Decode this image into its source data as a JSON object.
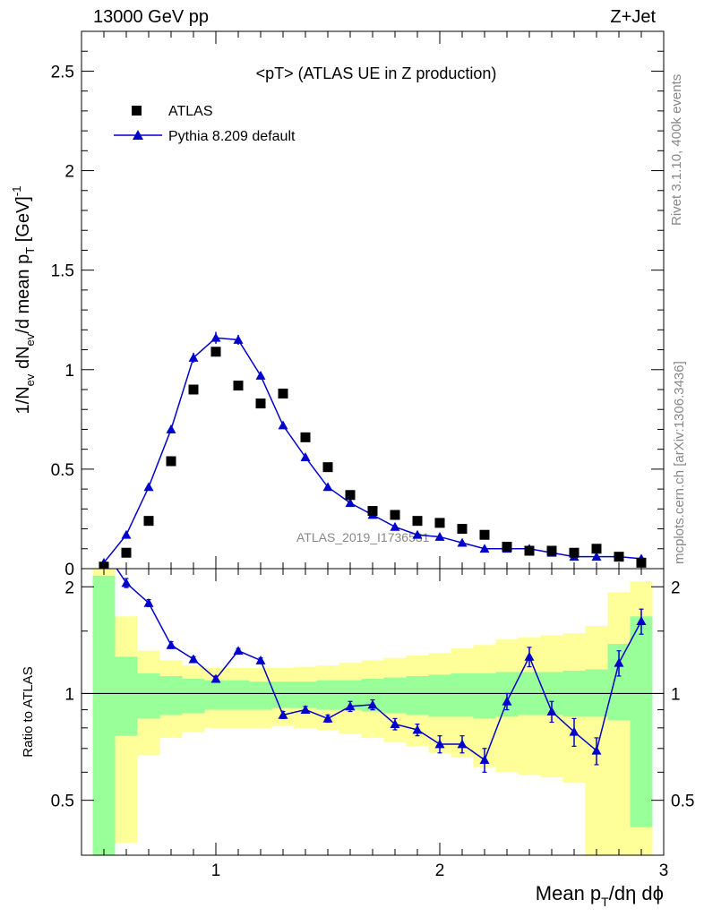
{
  "header": {
    "left": "13000 GeV pp",
    "right": "Z+Jet"
  },
  "side_labels": {
    "rivet": "Rivet 3.1.10,  400k events",
    "mcplots": "mcplots.cern.ch [arXiv:1306.3436]"
  },
  "colors": {
    "mc": "#0000cc",
    "data": "#000000",
    "band_inner": "#99ff99",
    "band_outer": "#ffff99",
    "watermark": "#888888"
  },
  "chart_data": [
    {
      "type": "scatter",
      "title": "<pT> (ATLAS UE in Z production)",
      "ylabel": "1/N_ev dN_ev/d mean p_T [GeV]^-1",
      "xlim": [
        0.4,
        3.0
      ],
      "ylim": [
        0,
        2.7
      ],
      "yticks": [
        0,
        0.5,
        1,
        1.5,
        2,
        2.5
      ],
      "ytick_labels": [
        "0",
        "0.5",
        "1",
        "1.5",
        "2",
        "2.5"
      ],
      "watermark": "ATLAS_2019_I1736531",
      "legend": {
        "placement": "top-left",
        "entries": [
          "ATLAS",
          "Pythia 8.209 default"
        ]
      },
      "series": [
        {
          "name": "ATLAS",
          "marker": "square",
          "x": [
            0.5,
            0.6,
            0.7,
            0.8,
            0.9,
            1.0,
            1.1,
            1.2,
            1.3,
            1.4,
            1.5,
            1.6,
            1.7,
            1.8,
            1.9,
            2.0,
            2.1,
            2.2,
            2.3,
            2.4,
            2.5,
            2.6,
            2.7,
            2.8,
            2.9
          ],
          "y": [
            0.01,
            0.08,
            0.24,
            0.54,
            0.9,
            1.09,
            0.92,
            0.83,
            0.88,
            0.66,
            0.51,
            0.37,
            0.29,
            0.27,
            0.24,
            0.23,
            0.2,
            0.17,
            0.11,
            0.09,
            0.09,
            0.08,
            0.1,
            0.06,
            0.03
          ]
        },
        {
          "name": "Pythia 8.209 default",
          "marker": "triangle",
          "x": [
            0.5,
            0.6,
            0.7,
            0.8,
            0.9,
            1.0,
            1.1,
            1.2,
            1.3,
            1.4,
            1.5,
            1.6,
            1.7,
            1.8,
            1.9,
            2.0,
            2.1,
            2.2,
            2.3,
            2.4,
            2.5,
            2.6,
            2.7,
            2.8,
            2.9
          ],
          "y": [
            0.03,
            0.17,
            0.41,
            0.7,
            1.06,
            1.16,
            1.15,
            0.97,
            0.72,
            0.56,
            0.41,
            0.33,
            0.27,
            0.21,
            0.17,
            0.16,
            0.13,
            0.1,
            0.1,
            0.1,
            0.08,
            0.06,
            0.06,
            0.06,
            0.05
          ],
          "err": [
            0.005,
            0.01,
            0.015,
            0.02,
            0.025,
            0.03,
            0.025,
            0.02,
            0.015,
            0.012,
            0.01,
            0.008,
            0.008,
            0.007,
            0.006,
            0.006,
            0.005,
            0.005,
            0.005,
            0.005,
            0.004,
            0.004,
            0.004,
            0.004,
            0.004
          ]
        }
      ]
    },
    {
      "type": "line",
      "ylabel": "Ratio to ATLAS",
      "xlabel": "Mean p_T/dη dϕ",
      "xlim": [
        0.4,
        3.0
      ],
      "ylim": [
        0.35,
        2.25
      ],
      "xticks": [
        1,
        2,
        3
      ],
      "xtick_labels": [
        "1",
        "2",
        "3"
      ],
      "yticks": [
        0.5,
        1,
        2
      ],
      "ytick_labels": [
        "0.5",
        "1",
        "2"
      ],
      "reference_line": 1,
      "bands": {
        "x_edges": [
          0.45,
          0.55,
          0.65,
          0.75,
          0.85,
          0.95,
          1.05,
          1.15,
          1.25,
          1.35,
          1.45,
          1.55,
          1.65,
          1.75,
          1.85,
          1.95,
          2.05,
          2.15,
          2.25,
          2.35,
          2.45,
          2.55,
          2.65,
          2.75,
          2.85,
          2.95
        ],
        "inner_low": [
          0.35,
          0.76,
          0.85,
          0.87,
          0.88,
          0.9,
          0.9,
          0.9,
          0.91,
          0.91,
          0.9,
          0.9,
          0.89,
          0.88,
          0.87,
          0.86,
          0.86,
          0.85,
          0.86,
          0.87,
          0.87,
          0.86,
          0.86,
          0.84,
          0.42
        ],
        "inner_high": [
          2.15,
          1.27,
          1.14,
          1.12,
          1.1,
          1.09,
          1.09,
          1.08,
          1.08,
          1.08,
          1.09,
          1.09,
          1.1,
          1.11,
          1.12,
          1.13,
          1.14,
          1.14,
          1.15,
          1.15,
          1.15,
          1.16,
          1.17,
          1.38,
          1.65
        ],
        "outer_low": [
          0.35,
          0.38,
          0.67,
          0.75,
          0.78,
          0.8,
          0.8,
          0.8,
          0.81,
          0.8,
          0.79,
          0.77,
          0.75,
          0.73,
          0.71,
          0.68,
          0.66,
          0.62,
          0.6,
          0.59,
          0.58,
          0.56,
          0.35,
          0.35,
          0.35
        ],
        "outer_high": [
          2.25,
          1.65,
          1.32,
          1.24,
          1.2,
          1.18,
          1.18,
          1.18,
          1.18,
          1.19,
          1.2,
          1.22,
          1.24,
          1.26,
          1.28,
          1.3,
          1.34,
          1.37,
          1.42,
          1.44,
          1.46,
          1.48,
          1.55,
          1.93,
          2.07
        ]
      },
      "series": [
        {
          "name": "Pythia 8.209 default",
          "x": [
            0.5,
            0.6,
            0.7,
            0.8,
            0.9,
            1.0,
            1.1,
            1.2,
            1.3,
            1.4,
            1.5,
            1.6,
            1.7,
            1.8,
            1.9,
            2.0,
            2.1,
            2.2,
            2.3,
            2.4,
            2.5,
            2.6,
            2.7,
            2.8,
            2.9
          ],
          "y": [
            2.55,
            2.05,
            1.8,
            1.37,
            1.25,
            1.1,
            1.32,
            1.24,
            0.87,
            0.9,
            0.85,
            0.92,
            0.93,
            0.82,
            0.79,
            0.72,
            0.72,
            0.65,
            0.95,
            1.27,
            0.89,
            0.78,
            0.69,
            1.22,
            1.6
          ],
          "err": [
            0.08,
            0.06,
            0.04,
            0.03,
            0.02,
            0.02,
            0.02,
            0.02,
            0.02,
            0.02,
            0.02,
            0.03,
            0.03,
            0.03,
            0.03,
            0.04,
            0.04,
            0.05,
            0.05,
            0.08,
            0.06,
            0.07,
            0.06,
            0.1,
            0.13
          ]
        }
      ]
    }
  ]
}
